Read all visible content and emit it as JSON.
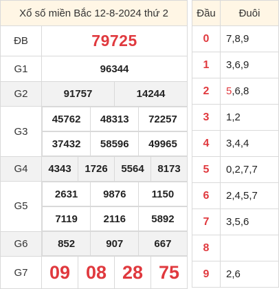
{
  "title": "Xổ số miền Bắc 12-8-2024 thứ 2",
  "labels": {
    "db": "ĐB",
    "g1": "G1",
    "g2": "G2",
    "g3": "G3",
    "g4": "G4",
    "g5": "G5",
    "g6": "G6",
    "g7": "G7"
  },
  "prizes": {
    "db": "79725",
    "g1": "96344",
    "g2": [
      "91757",
      "14244"
    ],
    "g3": [
      "45762",
      "48313",
      "72257",
      "37432",
      "58596",
      "49965"
    ],
    "g4": [
      "4343",
      "1726",
      "5564",
      "8173"
    ],
    "g5": [
      "2631",
      "9876",
      "1150",
      "7119",
      "2116",
      "5892"
    ],
    "g6": [
      "852",
      "907",
      "667"
    ],
    "g7": [
      "09",
      "08",
      "28",
      "75"
    ]
  },
  "dauduoi": {
    "header_dau": "Đầu",
    "header_duoi": "Đuôi",
    "rows": [
      {
        "dau": "0",
        "duoi": "7,8,9"
      },
      {
        "dau": "1",
        "duoi": "3,6,9"
      },
      {
        "dau": "2",
        "duoi_highlight": "5",
        "duoi_rest": ",6,8"
      },
      {
        "dau": "3",
        "duoi": "1,2"
      },
      {
        "dau": "4",
        "duoi": "3,4,4"
      },
      {
        "dau": "5",
        "duoi": "0,2,7,7"
      },
      {
        "dau": "6",
        "duoi": "2,4,5,7"
      },
      {
        "dau": "7",
        "duoi": "3,5,6"
      },
      {
        "dau": "8",
        "duoi": ""
      },
      {
        "dau": "9",
        "duoi": "2,6"
      }
    ]
  },
  "colors": {
    "accent_red": "#e0393e",
    "header_bg": "#fff6e5",
    "gray_row": "#f2f2f2"
  }
}
